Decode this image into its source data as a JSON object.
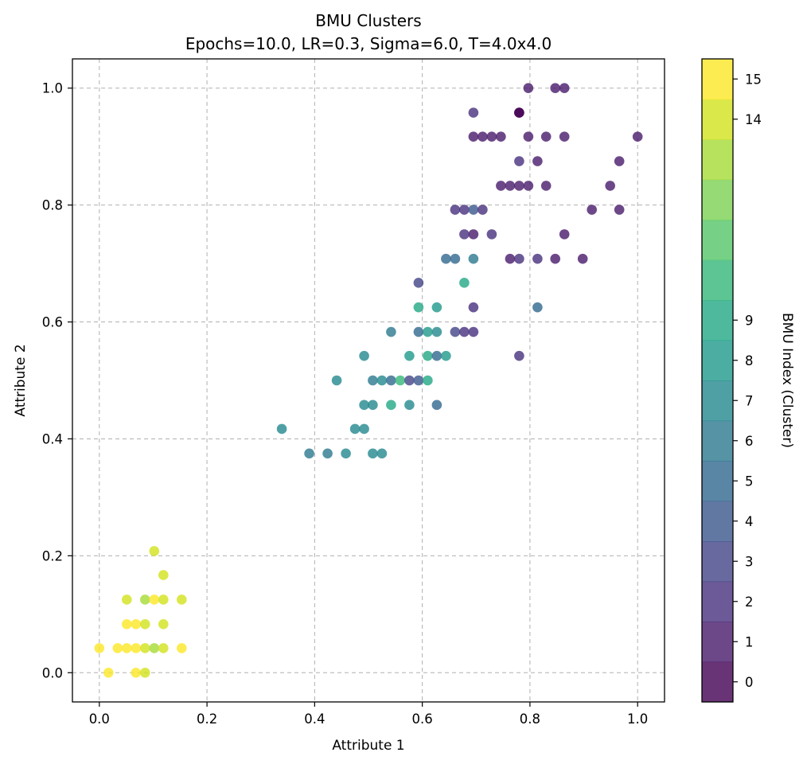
{
  "chart_data": {
    "type": "scatter",
    "title": "BMU Clusters",
    "subtitle": "Epochs=10.0, LR=0.3, Sigma=6.0, T=4.0x4.0",
    "xlabel": "Attribute 1",
    "ylabel": "Attribute 2",
    "xlim": [
      -0.05,
      1.05
    ],
    "ylim": [
      -0.05,
      1.05
    ],
    "xticks": [
      "0.0",
      "0.2",
      "0.4",
      "0.6",
      "0.8",
      "1.0"
    ],
    "yticks": [
      "0.0",
      "0.2",
      "0.4",
      "0.6",
      "0.8",
      "1.0"
    ],
    "grid": true,
    "colorbar": {
      "label": "BMU Index (Cluster)",
      "tick_labels": [
        "0",
        "1",
        "2",
        "3",
        "4",
        "5",
        "6",
        "7",
        "8",
        "9",
        "14",
        "15"
      ],
      "tick_values": [
        0,
        1,
        2,
        3,
        4,
        5,
        6,
        7,
        8,
        9,
        14,
        15
      ],
      "range": [
        -0.5,
        15.5
      ],
      "colors": [
        "#440154",
        "#481a6c",
        "#472f7d",
        "#414487",
        "#39568c",
        "#31688e",
        "#2a788e",
        "#23888e",
        "#1f988b",
        "#22a884",
        "#35b779",
        "#54c568",
        "#7ad151",
        "#a5db36",
        "#d2e21b",
        "#fde725"
      ]
    },
    "marker_alpha": 0.8,
    "points": [
      [
        0.797,
        1.0,
        1
      ],
      [
        0.847,
        1.0,
        1
      ],
      [
        0.864,
        1.0,
        1
      ],
      [
        0.695,
        0.958,
        2
      ],
      [
        0.78,
        0.958,
        0
      ],
      [
        0.78,
        0.958,
        0
      ],
      [
        0.695,
        0.917,
        1
      ],
      [
        0.712,
        0.917,
        1
      ],
      [
        0.729,
        0.917,
        1
      ],
      [
        0.746,
        0.917,
        1
      ],
      [
        0.797,
        0.917,
        1
      ],
      [
        0.83,
        0.917,
        1
      ],
      [
        0.864,
        0.917,
        1
      ],
      [
        1.0,
        0.917,
        1
      ],
      [
        0.78,
        0.875,
        2
      ],
      [
        0.814,
        0.875,
        1
      ],
      [
        0.966,
        0.875,
        1
      ],
      [
        0.746,
        0.833,
        1
      ],
      [
        0.763,
        0.833,
        1
      ],
      [
        0.78,
        0.833,
        1
      ],
      [
        0.797,
        0.833,
        1
      ],
      [
        0.83,
        0.833,
        1
      ],
      [
        0.949,
        0.833,
        1
      ],
      [
        0.661,
        0.792,
        2
      ],
      [
        0.678,
        0.792,
        2
      ],
      [
        0.695,
        0.792,
        4
      ],
      [
        0.712,
        0.792,
        2
      ],
      [
        0.915,
        0.792,
        1
      ],
      [
        0.966,
        0.792,
        1
      ],
      [
        0.678,
        0.75,
        2
      ],
      [
        0.695,
        0.75,
        1
      ],
      [
        0.729,
        0.75,
        2
      ],
      [
        0.864,
        0.75,
        1
      ],
      [
        0.644,
        0.708,
        5
      ],
      [
        0.661,
        0.708,
        5
      ],
      [
        0.695,
        0.708,
        6
      ],
      [
        0.763,
        0.708,
        1
      ],
      [
        0.78,
        0.708,
        2
      ],
      [
        0.814,
        0.708,
        2
      ],
      [
        0.847,
        0.708,
        1
      ],
      [
        0.898,
        0.708,
        1
      ],
      [
        0.593,
        0.667,
        3
      ],
      [
        0.678,
        0.667,
        9
      ],
      [
        0.593,
        0.625,
        9
      ],
      [
        0.627,
        0.625,
        8
      ],
      [
        0.695,
        0.625,
        2
      ],
      [
        0.814,
        0.625,
        5
      ],
      [
        0.542,
        0.583,
        6
      ],
      [
        0.593,
        0.583,
        5
      ],
      [
        0.61,
        0.583,
        8
      ],
      [
        0.627,
        0.583,
        7
      ],
      [
        0.661,
        0.583,
        3
      ],
      [
        0.678,
        0.583,
        2
      ],
      [
        0.695,
        0.583,
        2
      ],
      [
        0.492,
        0.542,
        7
      ],
      [
        0.576,
        0.542,
        8
      ],
      [
        0.61,
        0.542,
        9
      ],
      [
        0.627,
        0.542,
        5
      ],
      [
        0.644,
        0.542,
        8
      ],
      [
        0.78,
        0.542,
        2
      ],
      [
        0.441,
        0.5,
        7
      ],
      [
        0.508,
        0.5,
        6
      ],
      [
        0.525,
        0.5,
        7
      ],
      [
        0.542,
        0.5,
        5
      ],
      [
        0.559,
        0.5,
        10
      ],
      [
        0.576,
        0.5,
        3
      ],
      [
        0.593,
        0.5,
        4
      ],
      [
        0.61,
        0.5,
        9
      ],
      [
        0.492,
        0.458,
        7
      ],
      [
        0.508,
        0.458,
        7
      ],
      [
        0.542,
        0.458,
        9
      ],
      [
        0.576,
        0.458,
        7
      ],
      [
        0.627,
        0.458,
        5
      ],
      [
        0.339,
        0.417,
        7
      ],
      [
        0.475,
        0.417,
        7
      ],
      [
        0.492,
        0.417,
        7
      ],
      [
        0.39,
        0.375,
        6
      ],
      [
        0.424,
        0.375,
        6
      ],
      [
        0.458,
        0.375,
        7
      ],
      [
        0.508,
        0.375,
        7
      ],
      [
        0.525,
        0.375,
        7
      ],
      [
        0.102,
        0.208,
        14
      ],
      [
        0.119,
        0.167,
        14
      ],
      [
        0.051,
        0.125,
        14
      ],
      [
        0.085,
        0.125,
        13
      ],
      [
        0.102,
        0.125,
        15
      ],
      [
        0.119,
        0.125,
        14
      ],
      [
        0.153,
        0.125,
        14
      ],
      [
        0.051,
        0.083,
        15
      ],
      [
        0.068,
        0.083,
        15
      ],
      [
        0.085,
        0.083,
        14
      ],
      [
        0.119,
        0.083,
        14
      ],
      [
        0.0,
        0.042,
        15
      ],
      [
        0.034,
        0.042,
        15
      ],
      [
        0.051,
        0.042,
        15
      ],
      [
        0.068,
        0.042,
        15
      ],
      [
        0.085,
        0.042,
        14
      ],
      [
        0.102,
        0.042,
        13
      ],
      [
        0.119,
        0.042,
        14
      ],
      [
        0.153,
        0.042,
        15
      ],
      [
        0.017,
        0.0,
        15
      ],
      [
        0.068,
        0.0,
        15
      ],
      [
        0.085,
        0.0,
        14
      ]
    ]
  }
}
